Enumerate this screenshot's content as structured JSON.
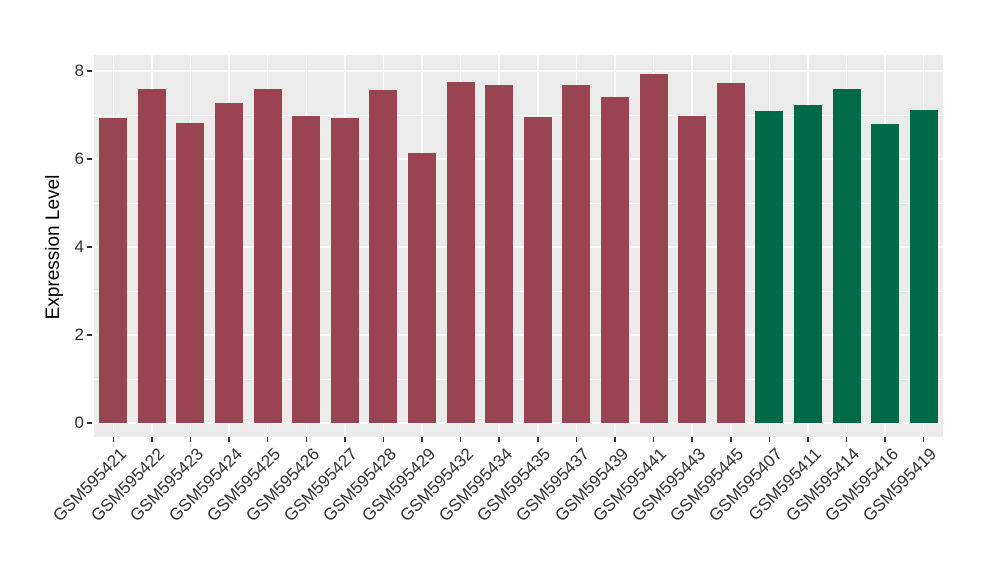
{
  "chart_data": {
    "type": "bar",
    "title": "",
    "xlabel": "",
    "ylabel": "Expression Level",
    "ylim": [
      0,
      8.36
    ],
    "yticks": [
      0,
      2,
      4,
      6,
      8
    ],
    "yticks_minor": [
      1,
      3,
      5,
      7
    ],
    "grid": "major-and-minor-white-on-gray",
    "legend": "none",
    "panel_bg": "#EBEBEB",
    "grid_color": "#FFFFFF",
    "axis_text_color": "#333333",
    "group_colors": {
      "group-1": "#9A4351",
      "group-2": "#006948"
    },
    "bars": [
      {
        "label": "GSM595421",
        "value": 6.93,
        "group": "group-1"
      },
      {
        "label": "GSM595422",
        "value": 7.6,
        "group": "group-1"
      },
      {
        "label": "GSM595423",
        "value": 6.82,
        "group": "group-1"
      },
      {
        "label": "GSM595424",
        "value": 7.27,
        "group": "group-1"
      },
      {
        "label": "GSM595425",
        "value": 7.6,
        "group": "group-1"
      },
      {
        "label": "GSM595426",
        "value": 6.97,
        "group": "group-1"
      },
      {
        "label": "GSM595427",
        "value": 6.93,
        "group": "group-1"
      },
      {
        "label": "GSM595428",
        "value": 7.57,
        "group": "group-1"
      },
      {
        "label": "GSM595429",
        "value": 6.13,
        "group": "group-1"
      },
      {
        "label": "GSM595432",
        "value": 7.75,
        "group": "group-1"
      },
      {
        "label": "GSM595434",
        "value": 7.68,
        "group": "group-1"
      },
      {
        "label": "GSM595435",
        "value": 6.95,
        "group": "group-1"
      },
      {
        "label": "GSM595437",
        "value": 7.68,
        "group": "group-1"
      },
      {
        "label": "GSM595439",
        "value": 7.41,
        "group": "group-1"
      },
      {
        "label": "GSM595441",
        "value": 7.93,
        "group": "group-1"
      },
      {
        "label": "GSM595443",
        "value": 6.98,
        "group": "group-1"
      },
      {
        "label": "GSM595445",
        "value": 7.73,
        "group": "group-1"
      },
      {
        "label": "GSM595407",
        "value": 7.09,
        "group": "group-2"
      },
      {
        "label": "GSM595411",
        "value": 7.23,
        "group": "group-2"
      },
      {
        "label": "GSM595414",
        "value": 7.6,
        "group": "group-2"
      },
      {
        "label": "GSM595416",
        "value": 6.8,
        "group": "group-2"
      },
      {
        "label": "GSM595419",
        "value": 7.12,
        "group": "group-2"
      }
    ]
  }
}
